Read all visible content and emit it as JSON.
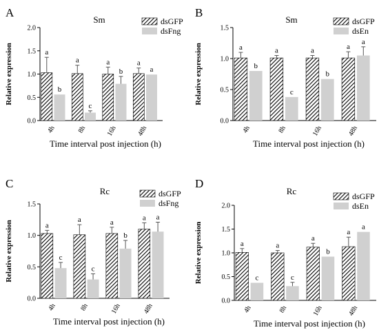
{
  "chart_data": [
    {
      "type": "bar",
      "panel": "A",
      "title": "Sm",
      "xlabel": "Time interval post injection (h)",
      "ylabel": "Relative expression",
      "ylim": [
        0,
        2.0
      ],
      "yticks": [
        "0.0",
        "0.5",
        "1.0",
        "1.5",
        "2.0"
      ],
      "categories": [
        "4h",
        "8h",
        "16h",
        "48h"
      ],
      "series": [
        {
          "name": "dsGFP",
          "values": [
            1.03,
            1.01,
            1.0,
            1.01
          ],
          "errors": [
            0.33,
            0.18,
            0.15,
            0.12
          ],
          "letters": [
            "a",
            "a",
            "a",
            "a"
          ]
        },
        {
          "name": "dsFng",
          "values": [
            0.56,
            0.17,
            0.79,
            0.99
          ],
          "errors": [
            0.0,
            0.04,
            0.16,
            0.0
          ],
          "letters": [
            "b",
            "c",
            "b",
            "a"
          ]
        }
      ]
    },
    {
      "type": "bar",
      "panel": "B",
      "title": "Sm",
      "xlabel": "Time interval post injection (h)",
      "ylabel": "Relative expression",
      "ylim": [
        0,
        1.5
      ],
      "yticks": [
        "0.0",
        "0.5",
        "1.0",
        "1.5"
      ],
      "categories": [
        "4h",
        "8h",
        "16h",
        "48h"
      ],
      "series": [
        {
          "name": "dsGFP",
          "values": [
            1.01,
            1.01,
            1.01,
            1.01
          ],
          "errors": [
            0.09,
            0.04,
            0.04,
            0.1
          ],
          "letters": [
            "a",
            "a",
            "a",
            "a"
          ]
        },
        {
          "name": "dsEn",
          "values": [
            0.8,
            0.38,
            0.67,
            1.05
          ],
          "errors": [
            0.0,
            0.0,
            0.0,
            0.14
          ],
          "letters": [
            "b",
            "c",
            "b",
            "a"
          ]
        }
      ]
    },
    {
      "type": "bar",
      "panel": "C",
      "title": "Rc",
      "xlabel": "Time interval post injection (h)",
      "ylabel": "Relative expression",
      "ylim": [
        0,
        1.5
      ],
      "yticks": [
        "0.0",
        "0.5",
        "1.0",
        "1.5"
      ],
      "categories": [
        "4h",
        "8h",
        "16h",
        "48h"
      ],
      "series": [
        {
          "name": "dsGFP",
          "values": [
            1.03,
            1.01,
            1.03,
            1.1
          ],
          "errors": [
            0.05,
            0.16,
            0.1,
            0.1
          ],
          "letters": [
            "a",
            "a",
            "a",
            "a"
          ]
        },
        {
          "name": "dsFng",
          "values": [
            0.48,
            0.3,
            0.79,
            1.06
          ],
          "errors": [
            0.09,
            0.09,
            0.13,
            0.15
          ],
          "letters": [
            "c",
            "c",
            "b",
            "a"
          ]
        }
      ]
    },
    {
      "type": "bar",
      "panel": "D",
      "title": "Rc",
      "xlabel": "Time interval post injection (h)",
      "ylabel": "Relative expression",
      "ylim": [
        0,
        2.0
      ],
      "yticks": [
        "0.0",
        "0.5",
        "1.0",
        "1.5",
        "2.0"
      ],
      "categories": [
        "4h",
        "8h",
        "16h",
        "48h"
      ],
      "series": [
        {
          "name": "dsGFP",
          "values": [
            1.01,
            1.0,
            1.12,
            1.13
          ],
          "errors": [
            0.08,
            0.05,
            0.08,
            0.2
          ],
          "letters": [
            "a",
            "a",
            "a",
            "a"
          ]
        },
        {
          "name": "dsEn",
          "values": [
            0.37,
            0.3,
            0.92,
            1.44
          ],
          "errors": [
            0.0,
            0.08,
            0.0,
            0.0
          ],
          "letters": [
            "c",
            "c",
            "b",
            "a"
          ]
        }
      ]
    }
  ]
}
